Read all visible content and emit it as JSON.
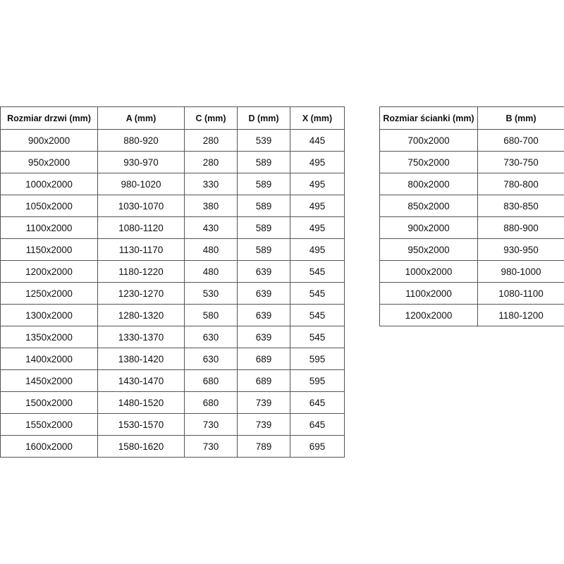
{
  "doors_table": {
    "headers": [
      "Rozmiar drzwi (mm)",
      "A (mm)",
      "C (mm)",
      "D (mm)",
      "X (mm)"
    ],
    "rows": [
      [
        "900x2000",
        "880-920",
        "280",
        "539",
        "445"
      ],
      [
        "950x2000",
        "930-970",
        "280",
        "589",
        "495"
      ],
      [
        "1000x2000",
        "980-1020",
        "330",
        "589",
        "495"
      ],
      [
        "1050x2000",
        "1030-1070",
        "380",
        "589",
        "495"
      ],
      [
        "1100x2000",
        "1080-1120",
        "430",
        "589",
        "495"
      ],
      [
        "1150x2000",
        "1130-1170",
        "480",
        "589",
        "495"
      ],
      [
        "1200x2000",
        "1180-1220",
        "480",
        "639",
        "545"
      ],
      [
        "1250x2000",
        "1230-1270",
        "530",
        "639",
        "545"
      ],
      [
        "1300x2000",
        "1280-1320",
        "580",
        "639",
        "545"
      ],
      [
        "1350x2000",
        "1330-1370",
        "630",
        "639",
        "545"
      ],
      [
        "1400x2000",
        "1380-1420",
        "630",
        "689",
        "595"
      ],
      [
        "1450x2000",
        "1430-1470",
        "680",
        "689",
        "595"
      ],
      [
        "1500x2000",
        "1480-1520",
        "680",
        "739",
        "645"
      ],
      [
        "1550x2000",
        "1530-1570",
        "730",
        "739",
        "645"
      ],
      [
        "1600x2000",
        "1580-1620",
        "730",
        "789",
        "695"
      ]
    ]
  },
  "wall_table": {
    "headers": [
      "Rozmiar ścianki (mm)",
      "B (mm)"
    ],
    "rows": [
      [
        "700x2000",
        "680-700"
      ],
      [
        "750x2000",
        "730-750"
      ],
      [
        "800x2000",
        "780-800"
      ],
      [
        "850x2000",
        "830-850"
      ],
      [
        "900x2000",
        "880-900"
      ],
      [
        "950x2000",
        "930-950"
      ],
      [
        "1000x2000",
        "980-1000"
      ],
      [
        "1100x2000",
        "1080-1100"
      ],
      [
        "1200x2000",
        "1180-1200"
      ]
    ]
  }
}
